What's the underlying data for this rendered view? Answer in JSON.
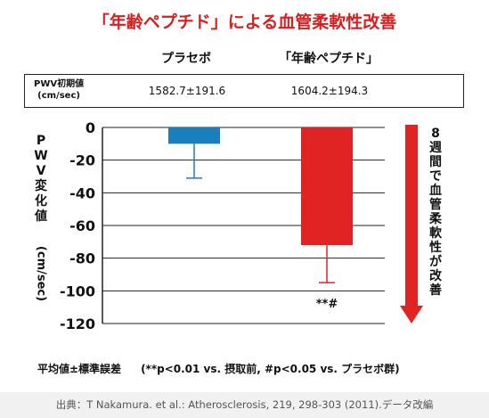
{
  "title": "「年齢ペプチド」による血管柔軟性改善",
  "column_headers": [
    "プラセボ",
    "「年齢ペプチド」"
  ],
  "initial_row": {
    "label_line1": "PWV初期値",
    "label_line2": "(cm/sec)",
    "values": [
      "1582.7±191.6",
      "1604.2±194.3"
    ]
  },
  "chart_data": {
    "type": "bar",
    "categories": [
      "プラセボ",
      "「年齢ペプチド」"
    ],
    "values": [
      -10,
      -72
    ],
    "error_minus": [
      21,
      23
    ],
    "colors": [
      "#1a7fbf",
      "#e02424"
    ],
    "ylabel": "PWV変化値",
    "yunit": "(cm/sec)",
    "ylim": [
      -120,
      0
    ],
    "yticks": [
      0,
      -20,
      -40,
      -60,
      -80,
      -100,
      -120
    ],
    "grid": true,
    "annotations": [
      {
        "category_index": 1,
        "text": "**#"
      }
    ],
    "side_label": "8週間で血管柔軟性が改善"
  },
  "footnote": {
    "left": "平均値±標準誤差",
    "right": "(**p<0.01 vs. 摂取前, #p<0.05 vs. プラセボ群)"
  },
  "source": "出典：T Nakamura. et al.: Atherosclerosis, 219, 298-303 (2011).データ改編"
}
